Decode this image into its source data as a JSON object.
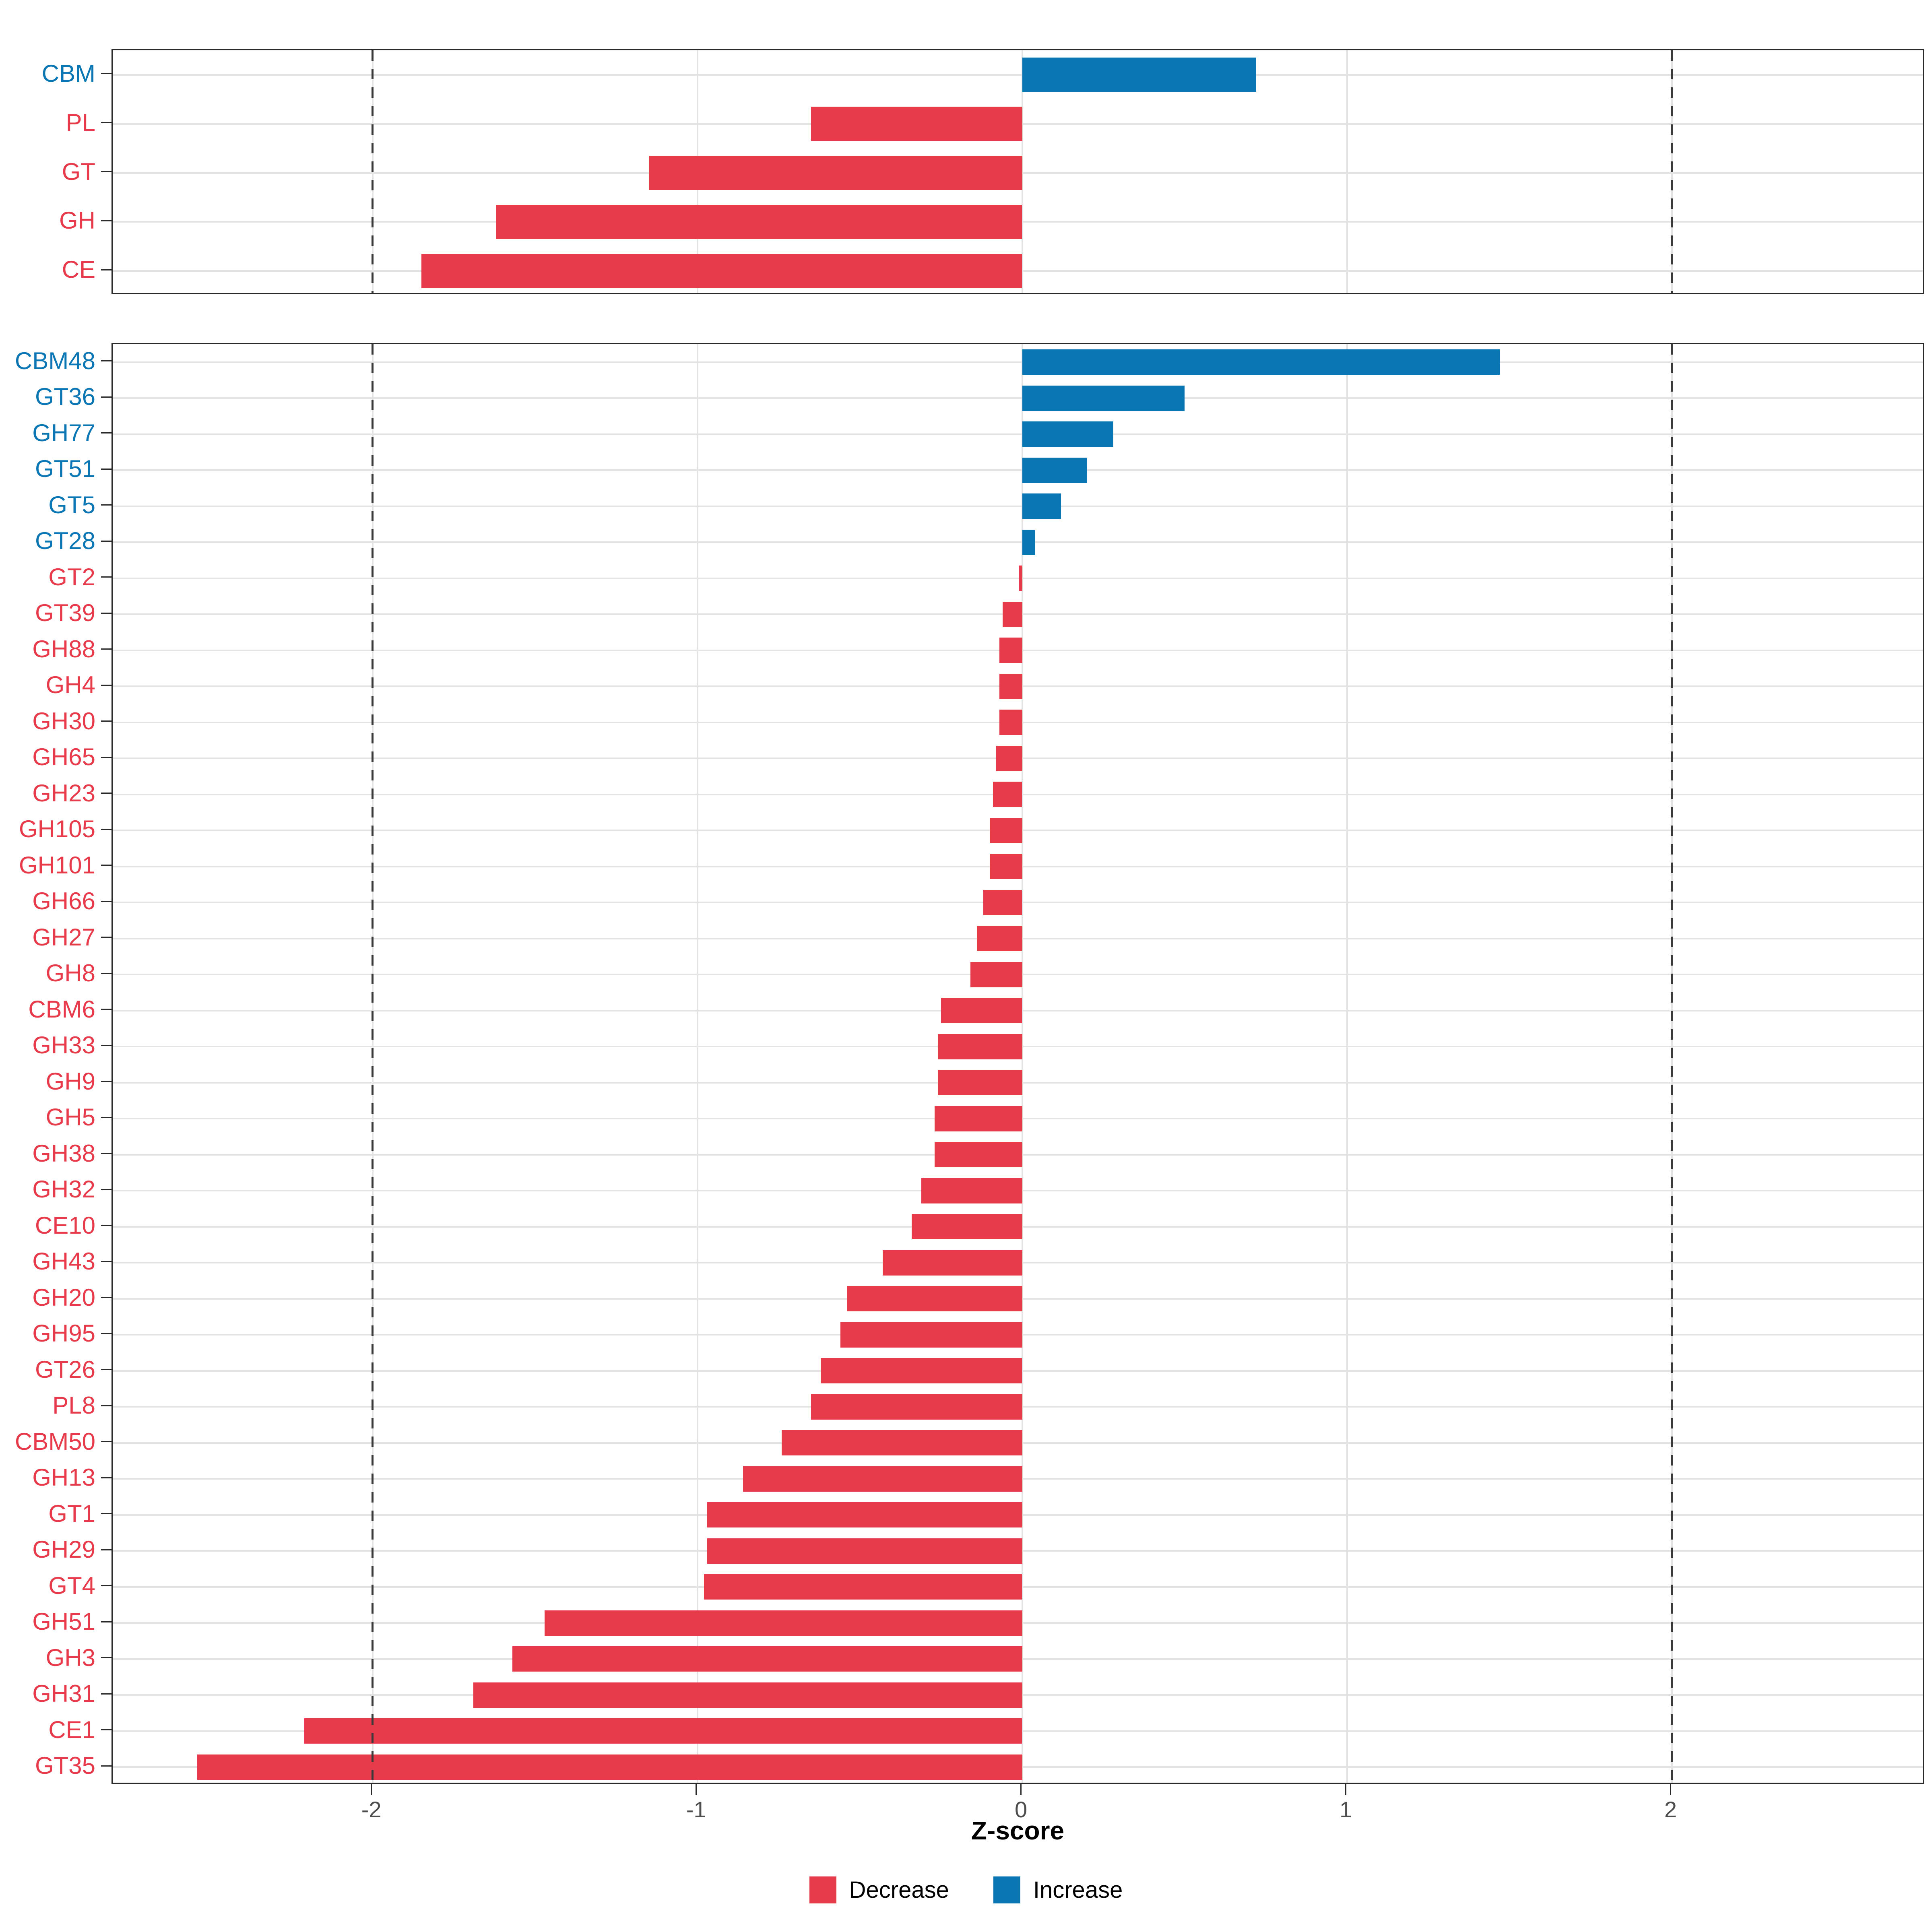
{
  "xlabel": "Z-score",
  "x_ticks": [
    {
      "value": -2,
      "label": "-2"
    },
    {
      "value": -1,
      "label": "-1"
    },
    {
      "value": 0,
      "label": "0"
    },
    {
      "value": 1,
      "label": "1"
    },
    {
      "value": 2,
      "label": "2"
    }
  ],
  "colors": {
    "decrease": "#E73B4C",
    "increase": "#0B76B4",
    "grid": "#E3E3E3",
    "panel_border": "#2B2B2B",
    "dashed_line": "#3A3A3A",
    "tick_text": "#4D4D4D"
  },
  "legend": {
    "items": [
      {
        "label": "Decrease",
        "color_key": "decrease"
      },
      {
        "label": "Increase",
        "color_key": "increase"
      }
    ]
  },
  "chart_data": [
    {
      "type": "bar",
      "orientation": "horizontal",
      "panel": "cazyme-class-level",
      "categories": [
        "CBM",
        "PL",
        "GT",
        "GH",
        "CE"
      ],
      "values": [
        0.72,
        -0.65,
        -1.15,
        -1.62,
        -1.85
      ],
      "directions": [
        "Increase",
        "Decrease",
        "Decrease",
        "Decrease",
        "Decrease"
      ],
      "xlabel": "Z-score",
      "xlim": [
        -2.8,
        2.78
      ],
      "reference_lines": [
        -2,
        2
      ],
      "grid": true,
      "legend_position": "bottom"
    },
    {
      "type": "bar",
      "orientation": "horizontal",
      "panel": "cazyme-family-level",
      "categories": [
        "CBM48",
        "GT36",
        "GH77",
        "GT51",
        "GT5",
        "GT28",
        "GT2",
        "GT39",
        "GH88",
        "GH4",
        "GH30",
        "GH65",
        "GH23",
        "GH105",
        "GH101",
        "GH66",
        "GH27",
        "GH8",
        "CBM6",
        "GH33",
        "GH9",
        "GH5",
        "GH38",
        "GH32",
        "CE10",
        "GH43",
        "GH20",
        "GH95",
        "GT26",
        "PL8",
        "CBM50",
        "GH13",
        "GT1",
        "GH29",
        "GT4",
        "GH51",
        "GH3",
        "GH31",
        "CE1",
        "GT35"
      ],
      "values": [
        1.47,
        0.5,
        0.28,
        0.2,
        0.12,
        0.04,
        -0.01,
        -0.06,
        -0.07,
        -0.07,
        -0.07,
        -0.08,
        -0.09,
        -0.1,
        -0.1,
        -0.12,
        -0.14,
        -0.16,
        -0.25,
        -0.26,
        -0.26,
        -0.27,
        -0.27,
        -0.31,
        -0.34,
        -0.43,
        -0.54,
        -0.56,
        -0.62,
        -0.65,
        -0.74,
        -0.86,
        -0.97,
        -0.97,
        -0.98,
        -1.47,
        -1.57,
        -1.69,
        -2.21,
        -2.54
      ],
      "directions": [
        "Increase",
        "Increase",
        "Increase",
        "Increase",
        "Increase",
        "Increase",
        "Decrease",
        "Decrease",
        "Decrease",
        "Decrease",
        "Decrease",
        "Decrease",
        "Decrease",
        "Decrease",
        "Decrease",
        "Decrease",
        "Decrease",
        "Decrease",
        "Decrease",
        "Decrease",
        "Decrease",
        "Decrease",
        "Decrease",
        "Decrease",
        "Decrease",
        "Decrease",
        "Decrease",
        "Decrease",
        "Decrease",
        "Decrease",
        "Decrease",
        "Decrease",
        "Decrease",
        "Decrease",
        "Decrease",
        "Decrease",
        "Decrease",
        "Decrease",
        "Decrease",
        "Decrease"
      ],
      "xlabel": "Z-score",
      "xlim": [
        -2.8,
        2.78
      ],
      "reference_lines": [
        -2,
        2
      ],
      "grid": true,
      "legend_position": "bottom"
    }
  ]
}
